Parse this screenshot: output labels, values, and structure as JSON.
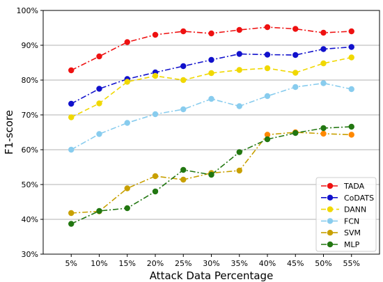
{
  "chart_data": {
    "type": "line",
    "title": "",
    "xlabel": "Attack Data Percentage",
    "ylabel": "F1-score",
    "categories": [
      "5%",
      "10%",
      "15%",
      "20%",
      "25%",
      "30%",
      "35%",
      "40%",
      "45%",
      "50%",
      "55%"
    ],
    "ylim": [
      30,
      100
    ],
    "yticks": [
      30,
      40,
      50,
      60,
      70,
      80,
      90,
      100
    ],
    "ytick_labels": [
      "30%",
      "40%",
      "50%",
      "60%",
      "70%",
      "80%",
      "90%",
      "100%"
    ],
    "grid": "horizontal",
    "legend_position": "bottom-right",
    "series": [
      {
        "name": "TADA",
        "color": "#ee1111",
        "dash": "dashdot",
        "values": [
          82.8,
          86.8,
          90.9,
          93.0,
          94.0,
          93.4,
          94.4,
          95.2,
          94.7,
          93.6,
          94.0
        ]
      },
      {
        "name": "CoDATS",
        "color": "#1111cc",
        "dash": "dashdot",
        "values": [
          73.2,
          77.5,
          80.3,
          82.2,
          84.0,
          85.8,
          87.5,
          87.3,
          87.2,
          88.9,
          89.5
        ]
      },
      {
        "name": "DANN",
        "color": "#f0d800",
        "dash": "dashed",
        "values": [
          69.3,
          73.3,
          79.5,
          81.2,
          80.0,
          82.0,
          82.9,
          83.4,
          82.1,
          84.8,
          86.5
        ]
      },
      {
        "name": "FCN",
        "color": "#88ccee",
        "dash": "dashdot",
        "values": [
          60.0,
          64.5,
          67.7,
          70.2,
          71.6,
          74.6,
          72.5,
          75.4,
          78.0,
          79.1,
          77.4
        ]
      },
      {
        "name": "SVM",
        "color": "#c8a000",
        "dash": "dashdot",
        "values": [
          41.8,
          42.3,
          48.9,
          52.4,
          51.4,
          53.3,
          54.0,
          64.3,
          65.0,
          64.6,
          64.3
        ]
      },
      {
        "name": "MLP",
        "color": "#227711",
        "dash": "dashdot",
        "values": [
          38.7,
          42.4,
          43.2,
          48.0,
          54.2,
          52.8,
          59.3,
          63.0,
          64.8,
          66.2,
          66.6
        ]
      }
    ],
    "overlay_colors": {
      "SVM": "#ff8800"
    }
  }
}
